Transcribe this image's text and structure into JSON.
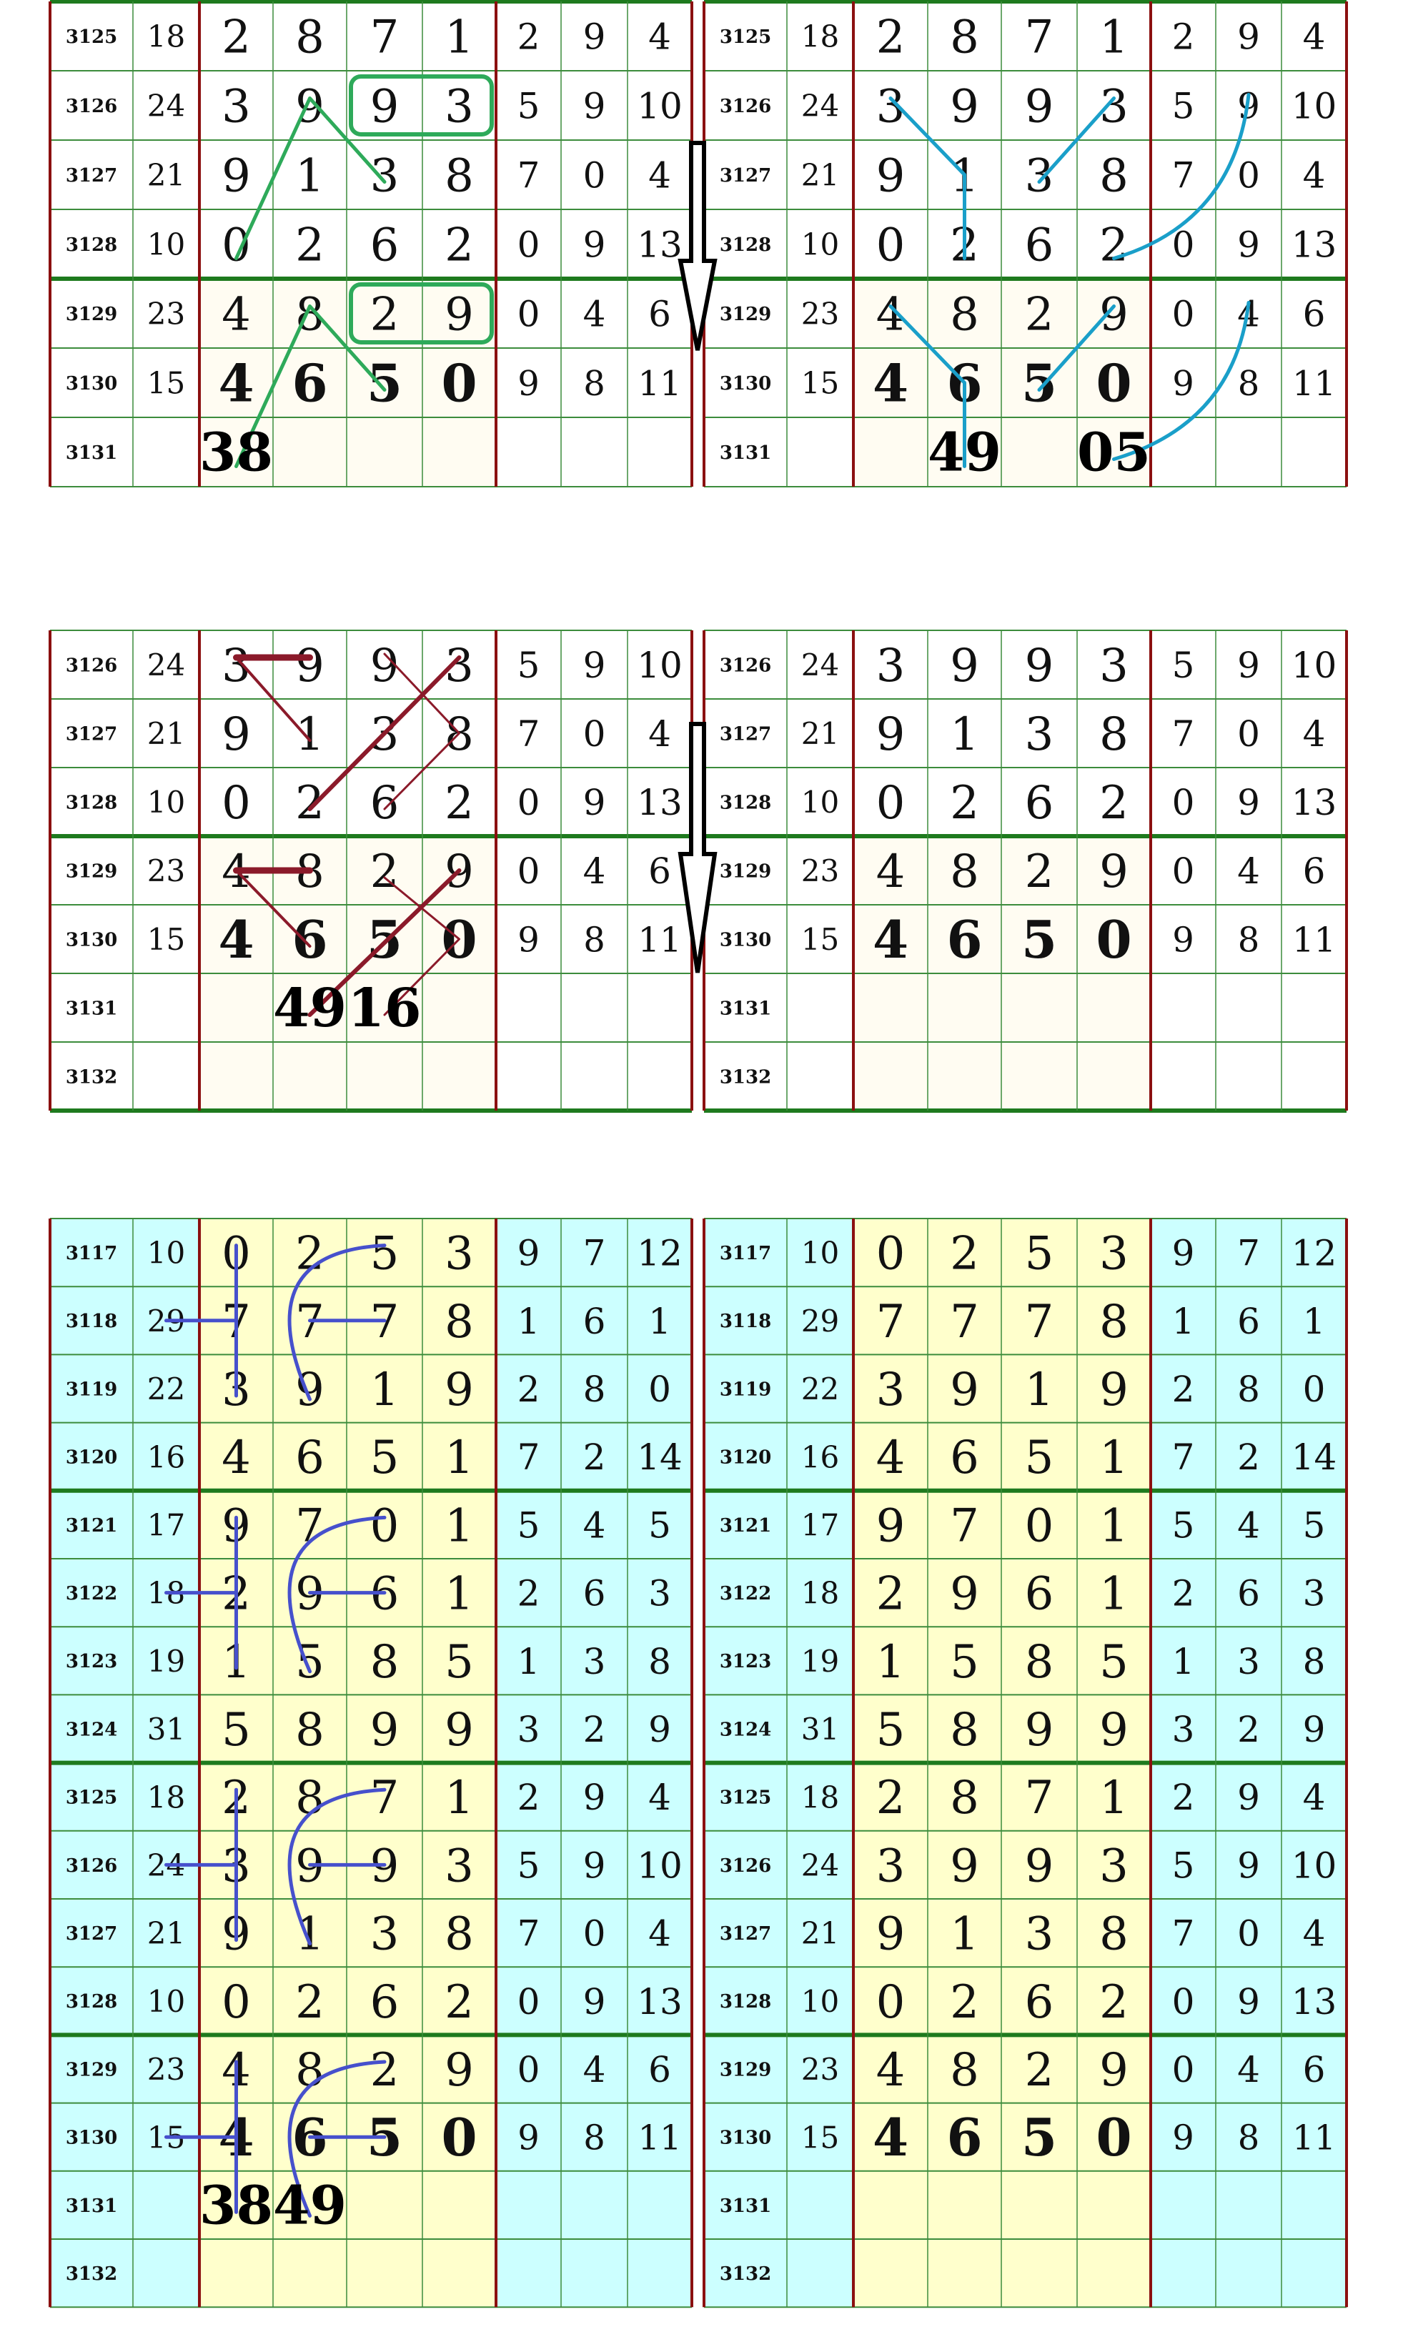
{
  "colors": {
    "grid_green": "#3c8c3c",
    "group_green": "#1e7a1e",
    "separator_red": "#8b1010",
    "panel3_cyan": "#ccffff",
    "panel3_yellow": "#ffffcc",
    "cream": "#fffcf2",
    "panel1_left_marks": "#2eaa5a",
    "panel1_right_marks": "#1a9fc9",
    "panel2_left_marks": "#8b1a2a",
    "panel3_left_marks": "#4650cc",
    "arrow": "#000000"
  },
  "icons": [
    "down-arrow-icon"
  ],
  "panels": [
    {
      "rows": [
        {
          "id": "3125",
          "sum": "18",
          "main": [
            "2",
            "8",
            "7",
            "1"
          ],
          "extra": [
            "2",
            "9",
            "4"
          ]
        },
        {
          "id": "3126",
          "sum": "24",
          "main": [
            "3",
            "9",
            "9",
            "3"
          ],
          "extra": [
            "5",
            "9",
            "10"
          ]
        },
        {
          "id": "3127",
          "sum": "21",
          "main": [
            "9",
            "1",
            "3",
            "8"
          ],
          "extra": [
            "7",
            "0",
            "4"
          ]
        },
        {
          "id": "3128",
          "sum": "10",
          "main": [
            "0",
            "2",
            "6",
            "2"
          ],
          "extra": [
            "0",
            "9",
            "13"
          ]
        },
        {
          "id": "3129",
          "sum": "23",
          "main": [
            "4",
            "8",
            "2",
            "9"
          ],
          "extra": [
            "0",
            "4",
            "6"
          ]
        },
        {
          "id": "3130",
          "sum": "15",
          "main": [
            "4",
            "6",
            "5",
            "0"
          ],
          "extra": [
            "9",
            "8",
            "11"
          ]
        },
        {
          "id": "3131"
        }
      ],
      "labels": {
        "left": [
          {
            "text": "38",
            "row": "3131",
            "col": "A"
          }
        ],
        "right": [
          {
            "text": "49",
            "row": "3131",
            "col": "B"
          },
          {
            "text": "05",
            "row": "3131",
            "col": "D"
          }
        ]
      }
    },
    {
      "rows": [
        {
          "id": "3126",
          "sum": "24",
          "main": [
            "3",
            "9",
            "9",
            "3"
          ],
          "extra": [
            "5",
            "9",
            "10"
          ]
        },
        {
          "id": "3127",
          "sum": "21",
          "main": [
            "9",
            "1",
            "3",
            "8"
          ],
          "extra": [
            "7",
            "0",
            "4"
          ]
        },
        {
          "id": "3128",
          "sum": "10",
          "main": [
            "0",
            "2",
            "6",
            "2"
          ],
          "extra": [
            "0",
            "9",
            "13"
          ]
        },
        {
          "id": "3129",
          "sum": "23",
          "main": [
            "4",
            "8",
            "2",
            "9"
          ],
          "extra": [
            "0",
            "4",
            "6"
          ]
        },
        {
          "id": "3130",
          "sum": "15",
          "main": [
            "4",
            "6",
            "5",
            "0"
          ],
          "extra": [
            "9",
            "8",
            "11"
          ]
        },
        {
          "id": "3131"
        },
        {
          "id": "3132"
        }
      ],
      "labels": {
        "left": [
          {
            "text": "49",
            "row": "3131",
            "col": "B"
          },
          {
            "text": "16",
            "row": "3131",
            "col": "C"
          }
        ],
        "right": []
      }
    },
    {
      "rows": [
        {
          "id": "3117",
          "sum": "10",
          "main": [
            "0",
            "2",
            "5",
            "3"
          ],
          "extra": [
            "9",
            "7",
            "12"
          ]
        },
        {
          "id": "3118",
          "sum": "29",
          "main": [
            "7",
            "7",
            "7",
            "8"
          ],
          "extra": [
            "1",
            "6",
            "1"
          ]
        },
        {
          "id": "3119",
          "sum": "22",
          "main": [
            "3",
            "9",
            "1",
            "9"
          ],
          "extra": [
            "2",
            "8",
            "0"
          ]
        },
        {
          "id": "3120",
          "sum": "16",
          "main": [
            "4",
            "6",
            "5",
            "1"
          ],
          "extra": [
            "7",
            "2",
            "14"
          ]
        },
        {
          "id": "3121",
          "sum": "17",
          "main": [
            "9",
            "7",
            "0",
            "1"
          ],
          "extra": [
            "5",
            "4",
            "5"
          ]
        },
        {
          "id": "3122",
          "sum": "18",
          "main": [
            "2",
            "9",
            "6",
            "1"
          ],
          "extra": [
            "2",
            "6",
            "3"
          ]
        },
        {
          "id": "3123",
          "sum": "19",
          "main": [
            "1",
            "5",
            "8",
            "5"
          ],
          "extra": [
            "1",
            "3",
            "8"
          ]
        },
        {
          "id": "3124",
          "sum": "31",
          "main": [
            "5",
            "8",
            "9",
            "9"
          ],
          "extra": [
            "3",
            "2",
            "9"
          ]
        },
        {
          "id": "3125",
          "sum": "18",
          "main": [
            "2",
            "8",
            "7",
            "1"
          ],
          "extra": [
            "2",
            "9",
            "4"
          ]
        },
        {
          "id": "3126",
          "sum": "24",
          "main": [
            "3",
            "9",
            "9",
            "3"
          ],
          "extra": [
            "5",
            "9",
            "10"
          ]
        },
        {
          "id": "3127",
          "sum": "21",
          "main": [
            "9",
            "1",
            "3",
            "8"
          ],
          "extra": [
            "7",
            "0",
            "4"
          ]
        },
        {
          "id": "3128",
          "sum": "10",
          "main": [
            "0",
            "2",
            "6",
            "2"
          ],
          "extra": [
            "0",
            "9",
            "13"
          ]
        },
        {
          "id": "3129",
          "sum": "23",
          "main": [
            "4",
            "8",
            "2",
            "9"
          ],
          "extra": [
            "0",
            "4",
            "6"
          ]
        },
        {
          "id": "3130",
          "sum": "15",
          "main": [
            "4",
            "6",
            "5",
            "0"
          ],
          "extra": [
            "9",
            "8",
            "11"
          ]
        },
        {
          "id": "3131"
        },
        {
          "id": "3132"
        }
      ],
      "labels": {
        "left": [
          {
            "text": "38",
            "row": "3131",
            "col": "A"
          },
          {
            "text": "49",
            "row": "3131",
            "col": "B"
          }
        ],
        "right": []
      }
    }
  ]
}
